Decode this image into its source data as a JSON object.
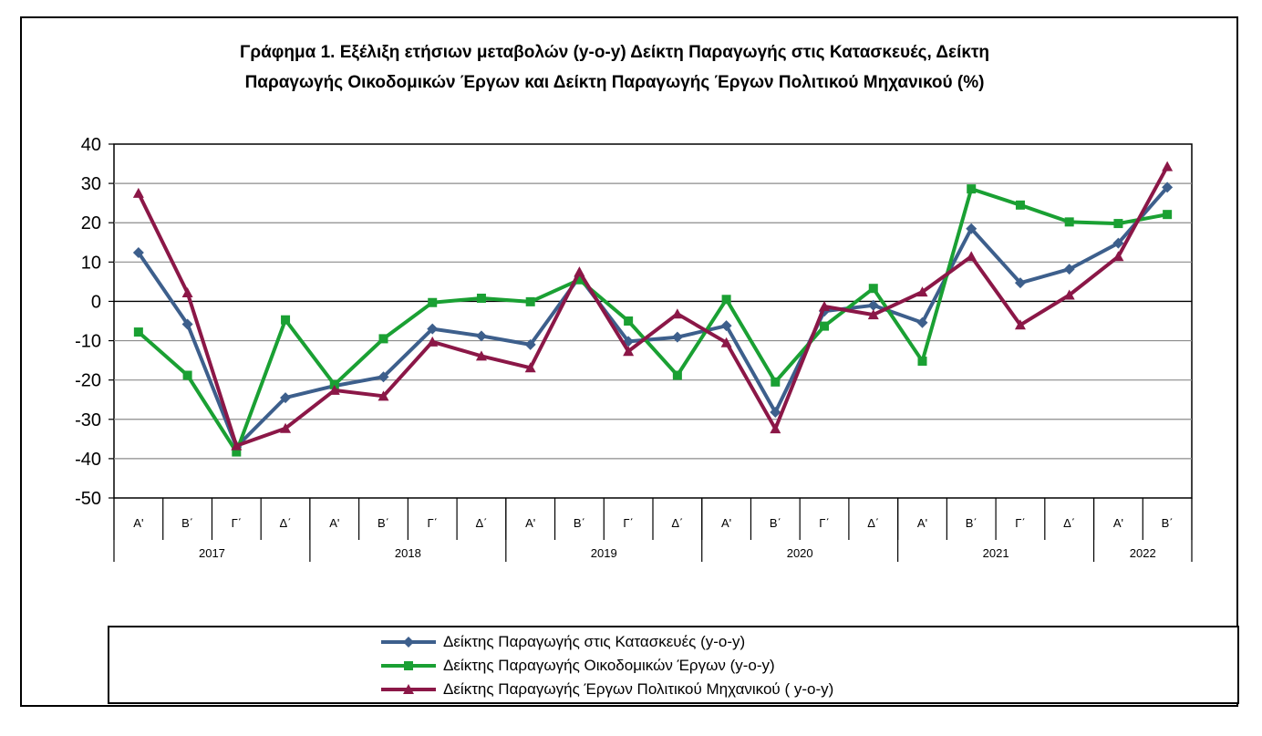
{
  "title_line1": "Γράφημα 1. Εξέλιξη ετήσιων μεταβολών (y-o-y) Δείκτη Παραγωγής στις Κατασκευές, Δείκτη",
  "title_line2": "Παραγωγής Οικοδομικών Έργων και  Δείκτη Παραγωγής  Έργων Πολιτικού Μηχανικού (%)",
  "chart_data": {
    "type": "line",
    "title": "Γράφημα 1. Εξέλιξη ετήσιων μεταβολών (y-o-y) Δείκτη Παραγωγής στις Κατασκευές, Δείκτη Παραγωγής Οικοδομικών Έργων και  Δείκτη Παραγωγής  Έργων Πολιτικού Μηχανικού (%)",
    "ylim": [
      -50,
      40
    ],
    "yticks": [
      40,
      30,
      20,
      10,
      0,
      -10,
      -20,
      -30,
      -40,
      -50
    ],
    "grid": true,
    "legend_position": "bottom",
    "categories": [
      "Α'",
      "Β΄",
      "Γ΄",
      "Δ΄",
      "Α'",
      "Β΄",
      "Γ΄",
      "Δ΄",
      "Α'",
      "Β΄",
      "Γ΄",
      "Δ΄",
      "Α'",
      "Β΄",
      "Γ΄",
      "Δ΄",
      "Α'",
      "Β΄",
      "Γ΄",
      "Δ΄",
      "Α'",
      "Β΄"
    ],
    "groups": [
      {
        "label": "2017",
        "count": 4
      },
      {
        "label": "2018",
        "count": 4
      },
      {
        "label": "2019",
        "count": 4
      },
      {
        "label": "2020",
        "count": 4
      },
      {
        "label": "2021",
        "count": 4
      },
      {
        "label": "2022",
        "count": 2
      }
    ],
    "series": [
      {
        "name": "Δείκτης Παραγωγής στις Κατασκευές (y-o-y)",
        "color": "#3d5f8c",
        "marker": "diamond",
        "values": [
          12.4,
          -5.8,
          -37.0,
          -24.5,
          -21.5,
          -19.2,
          -7.0,
          -8.8,
          -11.0,
          6.2,
          -10.2,
          -9.1,
          -6.2,
          -28.2,
          -2.5,
          -1.0,
          -5.4,
          18.5,
          4.7,
          8.2,
          14.8,
          29.0
        ]
      },
      {
        "name": "Δείκτης Παραγωγής Οικοδομικών Έργων (y-o-y)",
        "color": "#1aa033",
        "marker": "square",
        "values": [
          -7.8,
          -18.8,
          -38.3,
          -4.7,
          -21.2,
          -9.5,
          -0.3,
          0.8,
          -0.1,
          5.5,
          -5.0,
          -18.8,
          0.5,
          -20.5,
          -6.3,
          3.3,
          -15.2,
          28.6,
          24.5,
          20.2,
          19.8,
          22.1
        ]
      },
      {
        "name": "Δείκτης Παραγωγής Έργων Πολιτικού Μηχανικού ( y-o-y)",
        "color": "#8b1747",
        "marker": "triangle",
        "values": [
          27.5,
          2.2,
          -36.7,
          -32.3,
          -22.6,
          -24.1,
          -10.3,
          -13.9,
          -16.9,
          7.5,
          -12.7,
          -3.2,
          -10.5,
          -32.4,
          -1.3,
          -3.4,
          2.4,
          11.4,
          -6.0,
          1.6,
          11.4,
          34.3
        ]
      }
    ]
  }
}
